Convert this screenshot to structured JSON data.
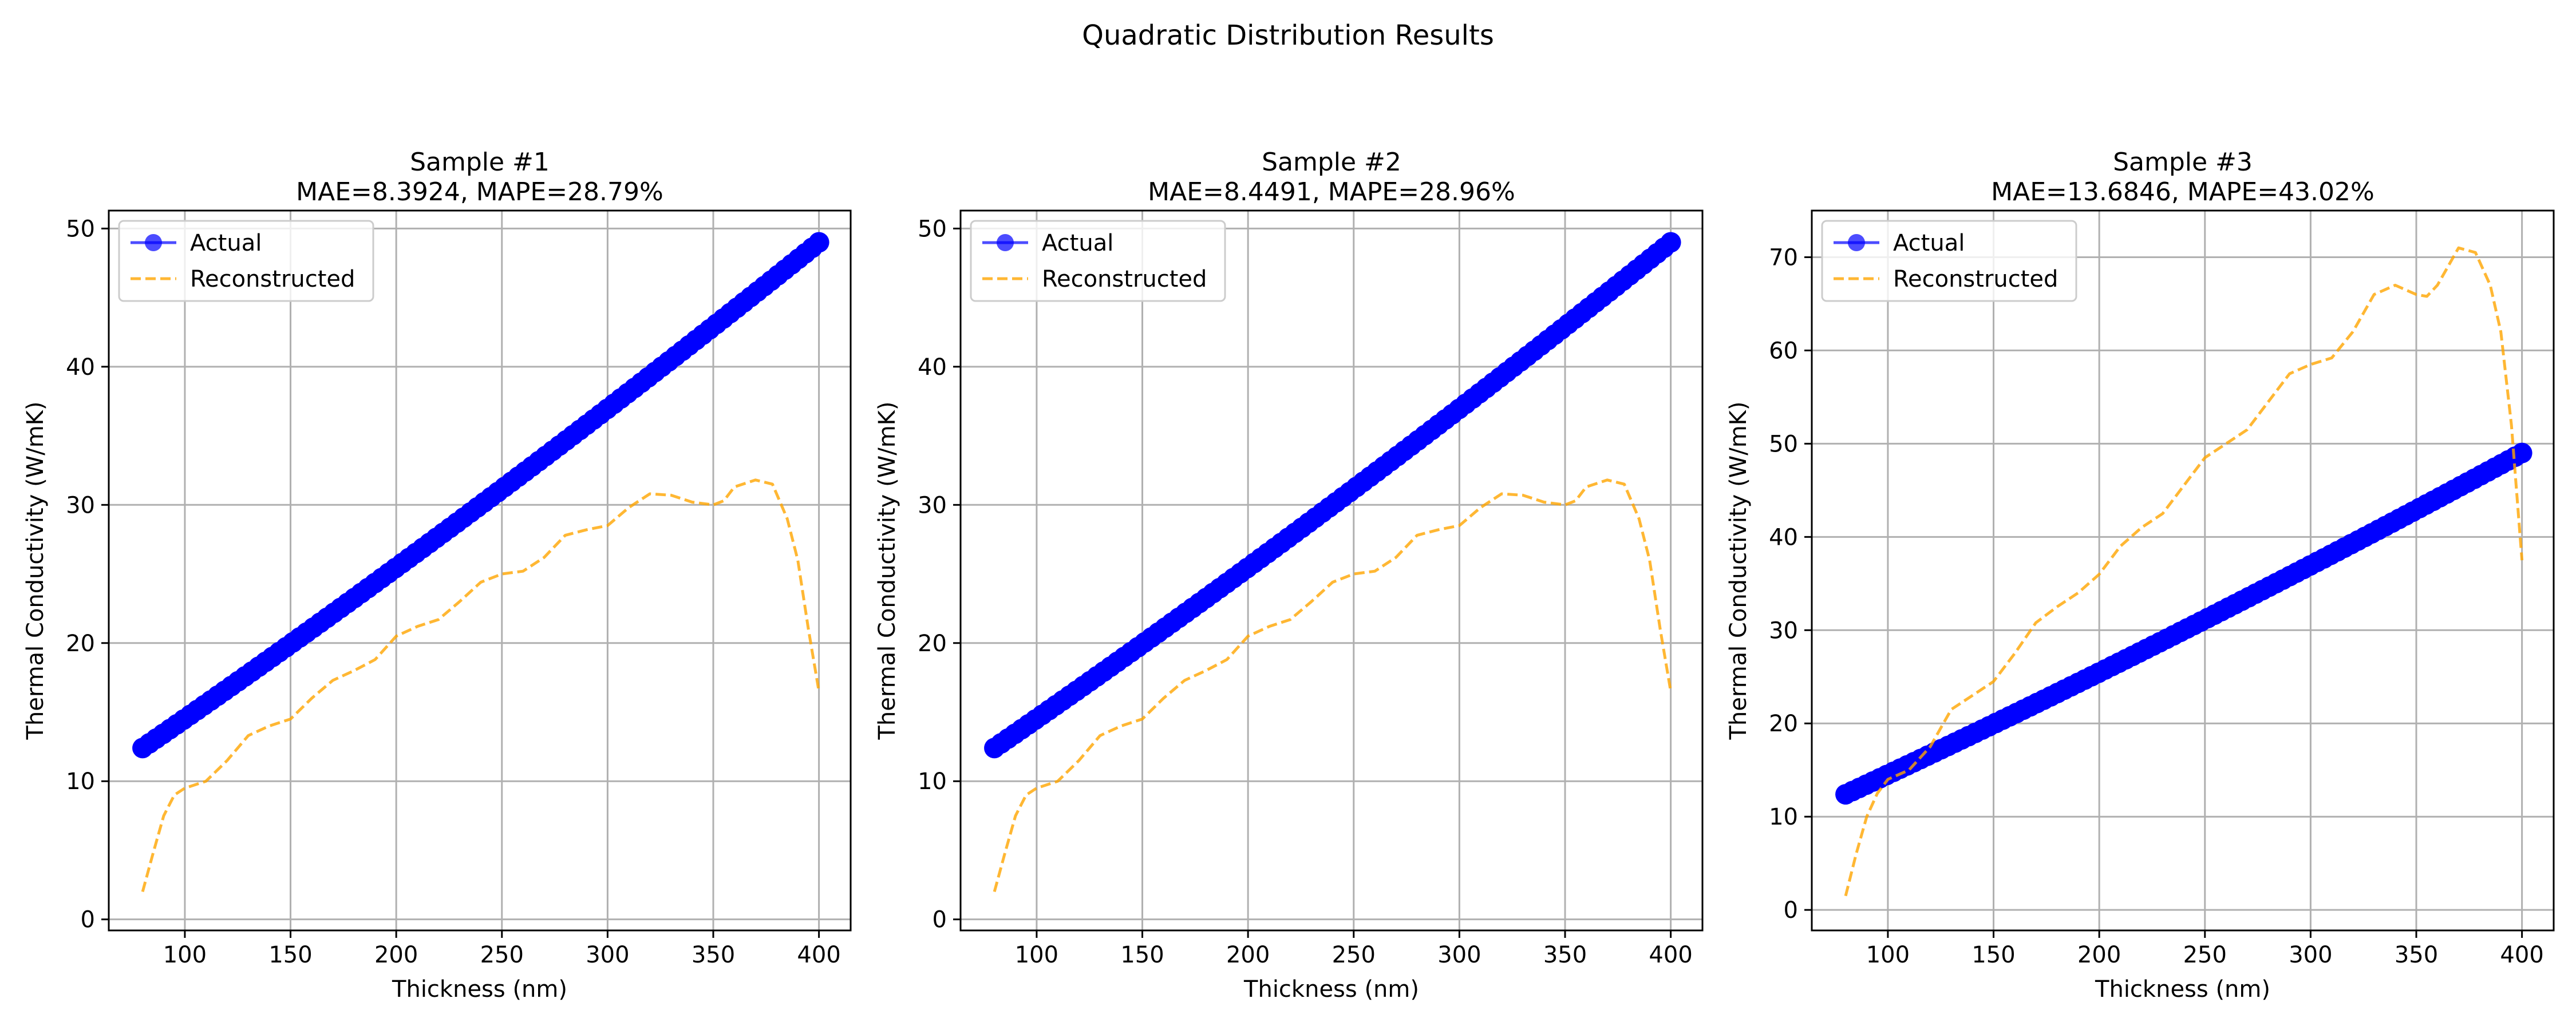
{
  "figure": {
    "title": "Quadratic Distribution Results"
  },
  "colors": {
    "actual": "#0000ff",
    "reconstructed": "#ffa500",
    "grid": "#b0b0b0",
    "axes": "#000000"
  },
  "chart_data": [
    {
      "type": "line",
      "title": "Sample #1",
      "subtitle": "MAE=8.3924, MAPE=28.79%",
      "xlabel": "Thickness (nm)",
      "ylabel": "Thermal Conductivity (W/mK)",
      "xlim": [
        64,
        415
      ],
      "ylim": [
        -0.8,
        51.3
      ],
      "xticks": [
        100,
        150,
        200,
        250,
        300,
        350,
        400
      ],
      "yticks": [
        0,
        10,
        20,
        30,
        40,
        50
      ],
      "grid": true,
      "legend_position": "top-left",
      "series": [
        {
          "name": "Actual",
          "style": "solid line with circle markers",
          "x_range": [
            80,
            400
          ],
          "num_points": 100,
          "curve": "quadratic",
          "y_start": 12.4,
          "y_mid": 30.0,
          "y_end": 49.0
        },
        {
          "name": "Reconstructed",
          "style": "dashed line",
          "x": [
            80,
            85,
            90,
            95,
            100,
            110,
            120,
            130,
            140,
            150,
            160,
            170,
            180,
            190,
            200,
            210,
            220,
            230,
            240,
            250,
            260,
            270,
            280,
            290,
            300,
            310,
            320,
            330,
            340,
            350,
            355,
            360,
            370,
            378,
            385,
            390,
            395,
            400
          ],
          "y": [
            2.0,
            4.8,
            7.5,
            9.0,
            9.5,
            10.0,
            11.5,
            13.3,
            14.0,
            14.5,
            16.0,
            17.3,
            18.0,
            18.8,
            20.5,
            21.2,
            21.7,
            23.0,
            24.4,
            25.0,
            25.2,
            26.2,
            27.8,
            28.2,
            28.5,
            29.8,
            30.8,
            30.7,
            30.2,
            30.0,
            30.3,
            31.3,
            31.8,
            31.5,
            29.0,
            26.0,
            21.0,
            16.5
          ]
        }
      ]
    },
    {
      "type": "line",
      "title": "Sample #2",
      "subtitle": "MAE=8.4491, MAPE=28.96%",
      "xlabel": "Thickness (nm)",
      "ylabel": "Thermal Conductivity (W/mK)",
      "xlim": [
        64,
        415
      ],
      "ylim": [
        -0.8,
        51.3
      ],
      "xticks": [
        100,
        150,
        200,
        250,
        300,
        350,
        400
      ],
      "yticks": [
        0,
        10,
        20,
        30,
        40,
        50
      ],
      "grid": true,
      "legend_position": "top-left",
      "series": [
        {
          "name": "Actual",
          "style": "solid line with circle markers",
          "x_range": [
            80,
            400
          ],
          "num_points": 100,
          "curve": "quadratic",
          "y_start": 12.4,
          "y_mid": 30.0,
          "y_end": 49.0
        },
        {
          "name": "Reconstructed",
          "style": "dashed line",
          "x": [
            80,
            85,
            90,
            95,
            100,
            110,
            120,
            130,
            140,
            150,
            160,
            170,
            180,
            190,
            200,
            210,
            220,
            230,
            240,
            250,
            260,
            270,
            280,
            290,
            300,
            310,
            320,
            330,
            340,
            350,
            355,
            360,
            370,
            378,
            385,
            390,
            395,
            400
          ],
          "y": [
            2.0,
            4.8,
            7.5,
            9.0,
            9.5,
            10.0,
            11.5,
            13.3,
            14.0,
            14.5,
            16.0,
            17.3,
            18.0,
            18.8,
            20.5,
            21.2,
            21.7,
            23.0,
            24.4,
            25.0,
            25.2,
            26.2,
            27.8,
            28.2,
            28.5,
            29.8,
            30.8,
            30.7,
            30.2,
            30.0,
            30.3,
            31.3,
            31.8,
            31.5,
            29.0,
            26.0,
            21.0,
            16.5
          ]
        }
      ]
    },
    {
      "type": "line",
      "title": "Sample #3",
      "subtitle": "MAE=13.6846, MAPE=43.02%",
      "xlabel": "Thickness (nm)",
      "ylabel": "Thermal Conductivity (W/mK)",
      "xlim": [
        64,
        415
      ],
      "ylim": [
        -2.2,
        75.0
      ],
      "xticks": [
        100,
        150,
        200,
        250,
        300,
        350,
        400
      ],
      "yticks": [
        0,
        10,
        20,
        30,
        40,
        50,
        60,
        70
      ],
      "grid": true,
      "legend_position": "top-left",
      "series": [
        {
          "name": "Actual",
          "style": "solid line with circle markers",
          "x_range": [
            80,
            400
          ],
          "num_points": 100,
          "curve": "quadratic",
          "y_start": 12.4,
          "y_mid": 30.0,
          "y_end": 49.0
        },
        {
          "name": "Reconstructed",
          "style": "dashed line",
          "x": [
            80,
            85,
            90,
            95,
            100,
            110,
            120,
            130,
            140,
            150,
            160,
            170,
            180,
            190,
            200,
            210,
            220,
            230,
            240,
            250,
            260,
            270,
            280,
            290,
            300,
            310,
            320,
            330,
            340,
            350,
            355,
            360,
            370,
            378,
            385,
            390,
            395,
            400
          ],
          "y": [
            1.5,
            6.0,
            10.0,
            12.5,
            14.0,
            15.0,
            17.5,
            21.5,
            23.0,
            24.5,
            27.5,
            30.8,
            32.5,
            34.0,
            36.0,
            39.0,
            41.0,
            42.5,
            45.5,
            48.5,
            50.0,
            51.5,
            54.5,
            57.5,
            58.5,
            59.2,
            62.0,
            66.0,
            67.0,
            66.0,
            65.8,
            67.0,
            71.0,
            70.5,
            67.0,
            62.0,
            52.0,
            37.5
          ]
        }
      ]
    }
  ]
}
